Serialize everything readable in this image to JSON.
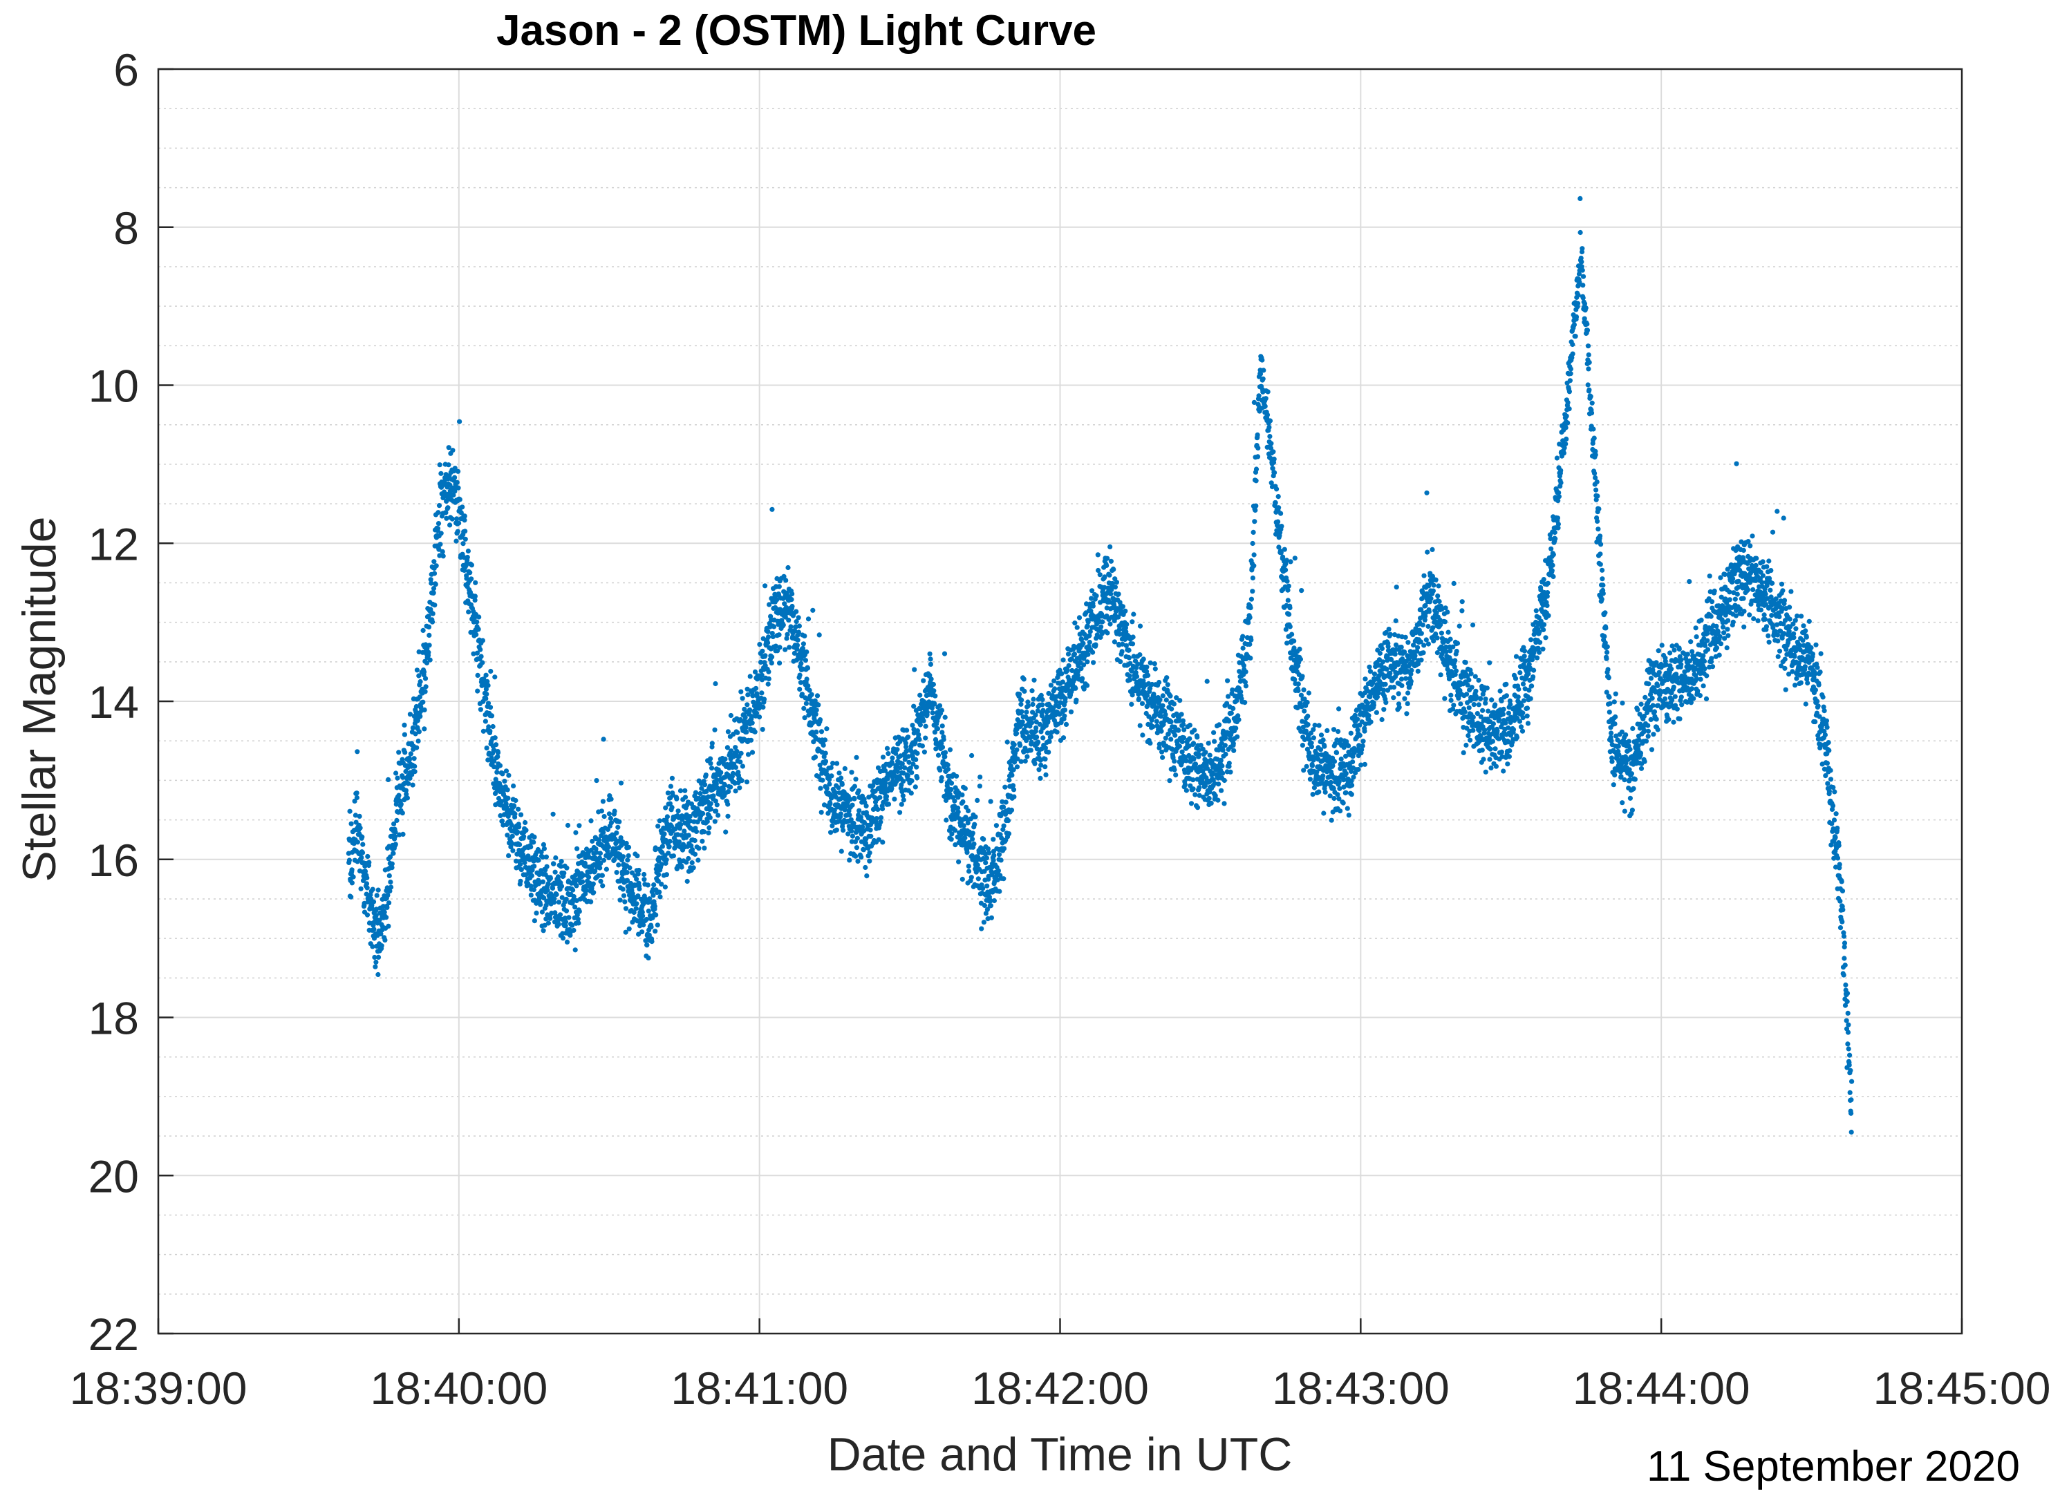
{
  "chart_data": {
    "type": "scatter",
    "title": "Jason - 2 (OSTM) Light Curve",
    "xlabel": "Date and Time in UTC",
    "ylabel": "Stellar Magnitude",
    "date_note": "11 September 2020",
    "x_unit": "time (UTC, hh:mm:ss)",
    "xlim": [
      "18:39:00",
      "18:45:00"
    ],
    "ylim": [
      6,
      22
    ],
    "y_reversed": true,
    "x_ticks": [
      "18:39:00",
      "18:40:00",
      "18:41:00",
      "18:42:00",
      "18:43:00",
      "18:44:00",
      "18:45:00"
    ],
    "y_ticks": [
      "6",
      "8",
      "10",
      "12",
      "14",
      "16",
      "18",
      "20",
      "22"
    ],
    "grid": true,
    "minor_grid": true,
    "legend": "none",
    "marker_color": "#0072BD",
    "series": [
      {
        "x": [
          "18:39:38",
          "18:39:40",
          "18:39:42",
          "18:39:44",
          "18:39:46",
          "18:39:48",
          "18:39:50",
          "18:39:52",
          "18:39:54",
          "18:39:56",
          "18:39:58",
          "18:40:00",
          "18:40:02",
          "18:40:04",
          "18:40:06",
          "18:40:08",
          "18:40:10",
          "18:40:12",
          "18:40:14",
          "18:40:18",
          "18:40:22",
          "18:40:26",
          "18:40:30",
          "18:40:34",
          "18:40:38",
          "18:40:42",
          "18:40:46",
          "18:40:50",
          "18:40:52",
          "18:40:56",
          "18:41:00",
          "18:41:03",
          "18:41:06",
          "18:41:10",
          "18:41:14",
          "18:41:18",
          "18:41:22",
          "18:41:26",
          "18:41:30",
          "18:41:34",
          "18:41:38",
          "18:41:42",
          "18:41:46",
          "18:41:49",
          "18:41:52",
          "18:41:56",
          "18:42:00",
          "18:42:04",
          "18:42:08",
          "18:42:10",
          "18:42:14",
          "18:42:18",
          "18:42:22",
          "18:42:26",
          "18:42:30",
          "18:42:34",
          "18:42:38",
          "18:42:40",
          "18:42:42",
          "18:42:46",
          "18:42:50",
          "18:42:54",
          "18:42:58",
          "18:43:02",
          "18:43:06",
          "18:43:10",
          "18:43:14",
          "18:43:18",
          "18:43:22",
          "18:43:26",
          "18:43:30",
          "18:43:34",
          "18:43:38",
          "18:43:41",
          "18:43:44",
          "18:43:47",
          "18:43:50",
          "18:43:54",
          "18:43:58",
          "18:44:02",
          "18:44:06",
          "18:44:10",
          "18:44:14",
          "18:44:18",
          "18:44:22",
          "18:44:26",
          "18:44:30",
          "18:44:33",
          "18:44:36",
          "18:44:38"
        ],
        "y": [
          16.0,
          15.6,
          16.6,
          17.0,
          16.3,
          15.2,
          14.8,
          14.2,
          13.1,
          11.8,
          11.2,
          11.6,
          12.5,
          13.4,
          14.3,
          15.0,
          15.4,
          15.8,
          16.1,
          16.4,
          16.6,
          16.2,
          15.6,
          16.4,
          16.8,
          15.5,
          15.8,
          15.2,
          15.0,
          14.6,
          13.8,
          13.0,
          12.8,
          14.0,
          15.2,
          15.5,
          15.6,
          14.9,
          14.8,
          13.8,
          15.2,
          15.8,
          16.4,
          15.6,
          14.2,
          14.5,
          14.0,
          13.5,
          12.8,
          12.6,
          13.5,
          14.0,
          14.4,
          14.8,
          14.9,
          14.5,
          13.0,
          9.8,
          10.8,
          13.2,
          14.7,
          15.0,
          14.8,
          13.9,
          13.5,
          13.6,
          12.6,
          13.6,
          14.1,
          14.4,
          14.3,
          13.6,
          12.3,
          10.4,
          8.3,
          11.4,
          14.5,
          14.9,
          14.0,
          13.8,
          13.6,
          13.2,
          12.6,
          12.4,
          12.8,
          13.3,
          13.6,
          14.6,
          16.6,
          19.2
        ]
      }
    ]
  }
}
